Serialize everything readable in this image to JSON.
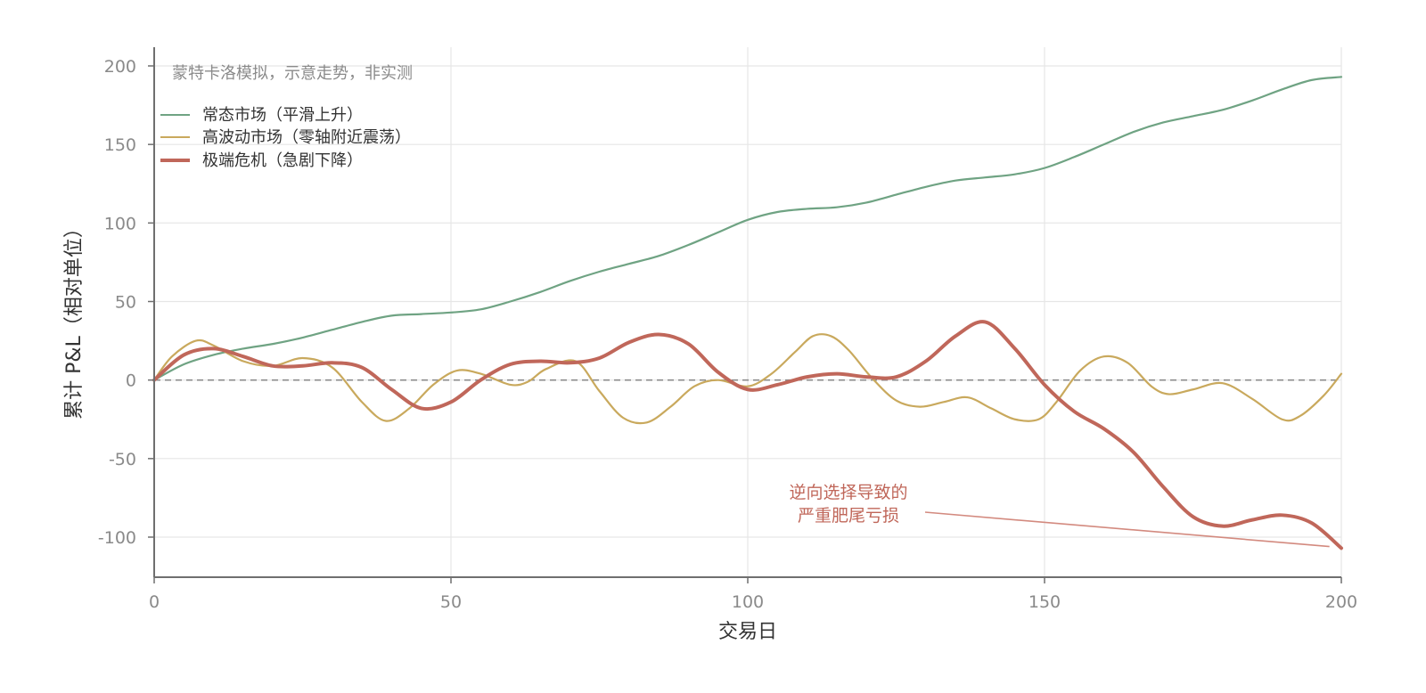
{
  "chart_data": {
    "type": "line",
    "title": "",
    "xlabel": "交易日",
    "ylabel": "累计 P&L（相对单位）",
    "xlim": [
      0,
      200
    ],
    "ylim": [
      -125,
      210
    ],
    "xticks": [
      "0",
      "50",
      "100",
      "150",
      "200"
    ],
    "yticks": [
      "200",
      "150",
      "100",
      "50",
      "0",
      "-50",
      "-100"
    ],
    "grid": true,
    "legend_position": "top-left",
    "note": "蒙特卡洛模拟，示意走势，非实测",
    "reference_line": {
      "y": 0,
      "style": "dashed",
      "color": "#8c8c8c"
    },
    "series": [
      {
        "name": "常态市场（平滑上升）",
        "color": "#6fa383",
        "x": [
          0,
          5,
          10,
          15,
          20,
          25,
          30,
          35,
          40,
          45,
          50,
          55,
          60,
          65,
          70,
          75,
          80,
          85,
          90,
          95,
          100,
          105,
          110,
          115,
          120,
          125,
          130,
          135,
          140,
          145,
          150,
          155,
          160,
          165,
          170,
          175,
          180,
          185,
          190,
          195,
          200
        ],
        "values": [
          0,
          10,
          16,
          20,
          23,
          27,
          32,
          37,
          41,
          42,
          43,
          45,
          50,
          56,
          63,
          69,
          74,
          79,
          86,
          94,
          102,
          107,
          109,
          110,
          113,
          118,
          123,
          127,
          129,
          131,
          135,
          142,
          150,
          158,
          164,
          168,
          172,
          178,
          185,
          191,
          193
        ]
      },
      {
        "name": "高波动市场（零轴附近震荡）",
        "color": "#c9a95d",
        "x": [
          0,
          3,
          7,
          10,
          15,
          20,
          25,
          30,
          35,
          39,
          43,
          47,
          51,
          55,
          60,
          63,
          66,
          71,
          75,
          79,
          83,
          87,
          91,
          95,
          100,
          104,
          108,
          111,
          114,
          117,
          121,
          125,
          129,
          133,
          137,
          141,
          145,
          149,
          152,
          156,
          160,
          164,
          168,
          171,
          175,
          180,
          185,
          190,
          193,
          197,
          200
        ],
        "values": [
          0,
          15,
          25,
          22,
          12,
          9,
          14,
          8,
          -14,
          -26,
          -18,
          -3,
          6,
          4,
          -3,
          -1,
          7,
          12,
          -7,
          -24,
          -27,
          -17,
          -4,
          0,
          -4,
          4,
          18,
          28,
          28,
          19,
          1,
          -13,
          -17,
          -14,
          -11,
          -18,
          -25,
          -25,
          -14,
          6,
          15,
          11,
          -4,
          -9,
          -6,
          -2,
          -12,
          -25,
          -23,
          -10,
          4
        ]
      },
      {
        "name": "极端危机（急剧下降）",
        "color": "#c0675a",
        "x": [
          0,
          5,
          10,
          15,
          20,
          25,
          30,
          35,
          40,
          45,
          50,
          55,
          60,
          65,
          70,
          75,
          80,
          85,
          90,
          95,
          100,
          105,
          110,
          115,
          120,
          125,
          130,
          135,
          140,
          145,
          150,
          155,
          160,
          165,
          170,
          175,
          180,
          185,
          190,
          195,
          200
        ],
        "values": [
          0,
          16,
          20,
          15,
          9,
          9,
          11,
          8,
          -6,
          -18,
          -14,
          0,
          10,
          12,
          11,
          14,
          24,
          29,
          23,
          5,
          -6,
          -3,
          2,
          4,
          2,
          2,
          12,
          28,
          37,
          20,
          -3,
          -20,
          -31,
          -46,
          -68,
          -87,
          -93,
          -89,
          -86,
          -91,
          -107
        ]
      }
    ],
    "annotations": [
      {
        "text_line1": "逆向选择导致的",
        "text_line2": "严重肥尾亏损",
        "color": "#c0675a",
        "arrow_to": {
          "x": 198,
          "y": -106
        }
      }
    ]
  }
}
